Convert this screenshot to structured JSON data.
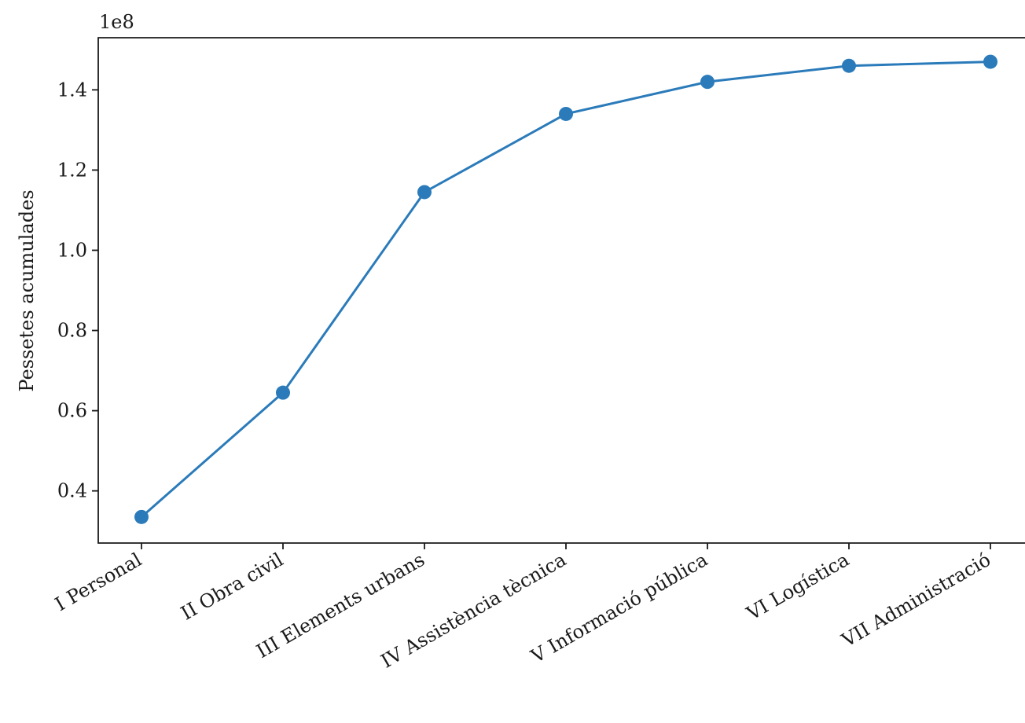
{
  "chart_data": {
    "type": "line",
    "title": "",
    "xlabel": "",
    "ylabel": "Pessetes acumulades",
    "y_offset_label": "1e8",
    "y_scale_multiplier": 100000000,
    "categories": [
      "I Personal",
      "II Obra civil",
      "III Elements urbans",
      "IV Assistència tècnica",
      "V Informació pública",
      "VI Logística",
      "VII Administració"
    ],
    "series": [
      {
        "values": [
          33500000,
          64500000,
          114500000,
          134000000,
          142000000,
          146000000,
          147000000
        ]
      }
    ],
    "ylim": [
      27000000,
      153000000
    ],
    "y_ticks": [
      0.4,
      0.6,
      0.8,
      1.0,
      1.2,
      1.4
    ],
    "y_tick_labels": [
      "0.4",
      "0.6",
      "0.8",
      "1.0",
      "1.2",
      "1.4"
    ],
    "line_color": "#2b7bba",
    "marker": "circle",
    "grid": false
  }
}
